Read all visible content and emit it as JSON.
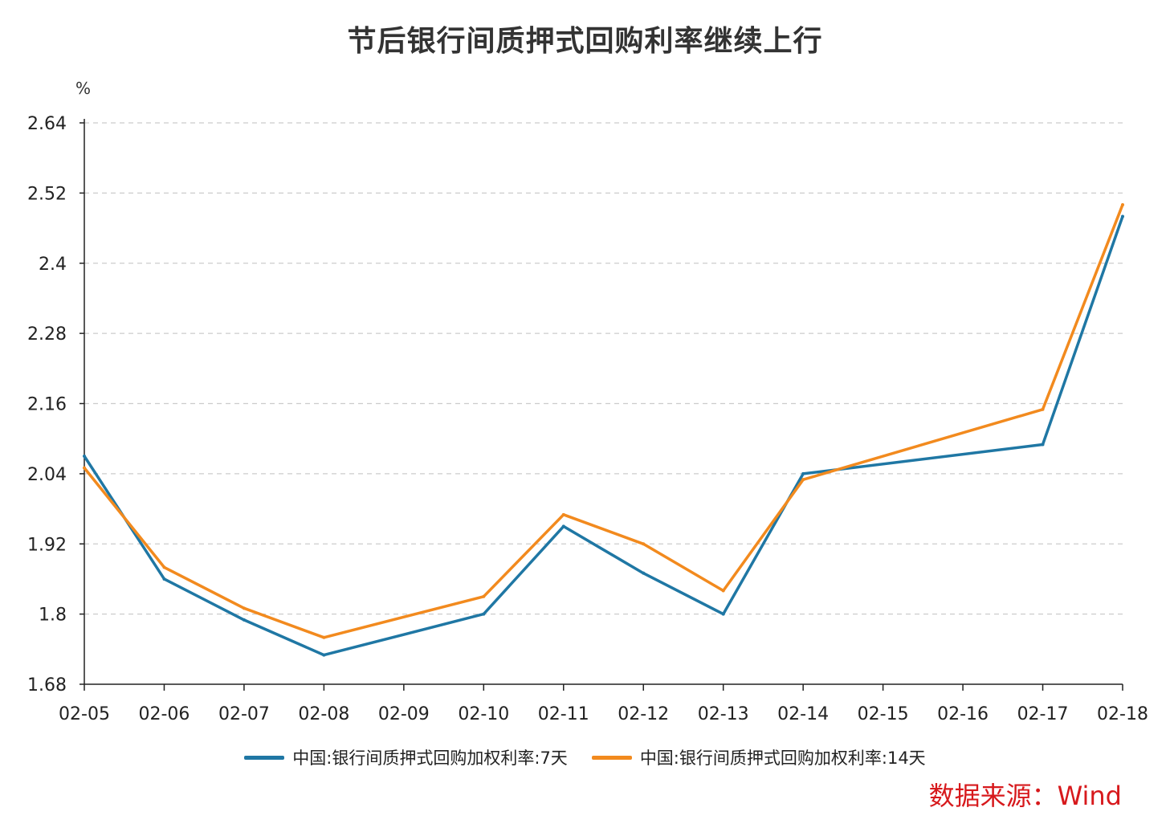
{
  "title": "节后银行间质押式回购利率继续上行",
  "source_label": "数据来源：Wind",
  "colors": {
    "series_7d": "#1f77a4",
    "series_14d": "#f28a1e",
    "grid": "#cccccc",
    "axis": "#222222"
  },
  "chart_data": {
    "type": "line",
    "title": "节后银行间质押式回购利率继续上行",
    "ylabel": "%",
    "xlabel": "",
    "ylim": [
      1.68,
      2.64
    ],
    "yticks": [
      "1.68",
      "1.8",
      "1.92",
      "2.04",
      "2.16",
      "2.28",
      "2.4",
      "2.52",
      "2.64"
    ],
    "grid": true,
    "legend_position": "bottom",
    "categories": [
      "02-05",
      "02-06",
      "02-07",
      "02-08",
      "02-09",
      "02-10",
      "02-11",
      "02-12",
      "02-13",
      "02-14",
      "02-15",
      "02-16",
      "02-17",
      "02-18"
    ],
    "series": [
      {
        "name": "中国:银行间质押式回购加权利率:7天",
        "x": [
          "02-05",
          "02-06",
          "02-07",
          "02-08",
          "02-10",
          "02-11",
          "02-12",
          "02-13",
          "02-14",
          "02-17",
          "02-18"
        ],
        "values": [
          2.07,
          1.86,
          1.79,
          1.73,
          1.8,
          1.95,
          1.87,
          1.8,
          2.04,
          2.09,
          2.48
        ]
      },
      {
        "name": "中国:银行间质押式回购加权利率:14天",
        "x": [
          "02-05",
          "02-06",
          "02-07",
          "02-08",
          "02-10",
          "02-11",
          "02-12",
          "02-13",
          "02-14",
          "02-17",
          "02-18"
        ],
        "values": [
          2.05,
          1.88,
          1.81,
          1.76,
          1.83,
          1.97,
          1.92,
          1.84,
          2.03,
          2.15,
          2.5
        ]
      }
    ]
  }
}
